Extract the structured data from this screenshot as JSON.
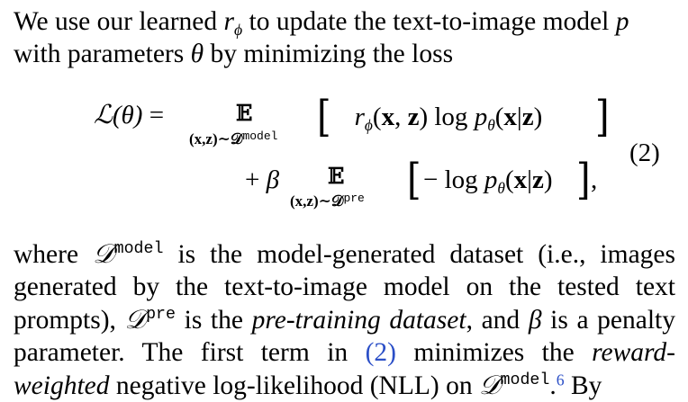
{
  "p1": {
    "t1": "We use our learned ",
    "r": "r",
    "phi": "ϕ",
    "t2": " to update the text-to-image model ",
    "p": "p",
    "t3": "with parameters ",
    "theta": "θ",
    "t4": " by minimizing the loss"
  },
  "eq": {
    "lhs": "ℒ(θ) =",
    "E": "𝔼",
    "under1_pre": "(x,z)∼𝒟",
    "under1_sup": "model",
    "body1": "− r",
    "body1_sub": "ϕ",
    "body1_rest": "(x, z) log p",
    "body1_theta": "θ",
    "body1_end": "(x|z)",
    "plus_beta": "+ β",
    "under2_pre": "(x,z)∼𝒟",
    "under2_sup": "pre",
    "body2": "− log p",
    "body2_theta": "θ",
    "body2_end": "(x|z)",
    "comma": ",",
    "bracket_open": "[",
    "bracket_close": "]",
    "number": "(2)"
  },
  "p2": {
    "t1": "where ",
    "D": "𝒟",
    "sup_model": "model",
    "t2": " is the model-generated dataset (i.e., images generated by the text-to-image model on the tested text prompts), ",
    "sup_pre": "pre",
    "t3": " is the ",
    "pretrain": "pre-training dataset",
    "t4": ", and ",
    "beta": "β",
    "t5": " is a penalty parameter.  The first term in ",
    "ref": "(2)",
    "t6": " minimizes the ",
    "rw": "reward-weighted",
    "t7": " negative log-likelihood (NLL) on ",
    "t8": ".",
    "fn": "6",
    "t9": " By"
  }
}
